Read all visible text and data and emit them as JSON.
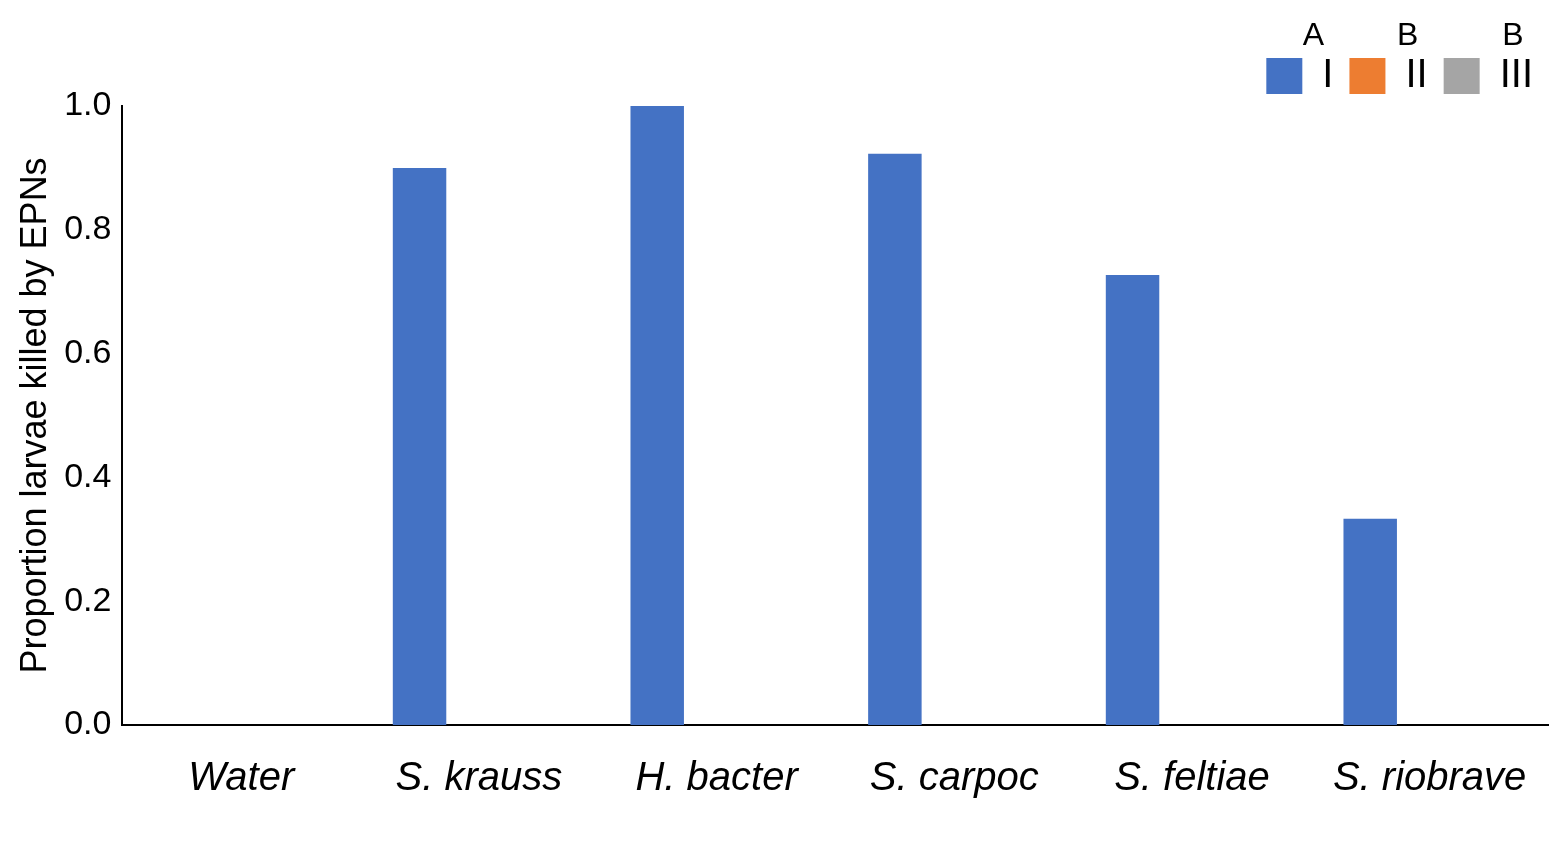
{
  "chart_data": {
    "type": "bar",
    "ylabel": "Proportion larvae killed by EPNs",
    "categories": [
      "Water",
      "S. krauss",
      "H. bacter",
      "S. carpoc",
      "S. feltiae",
      "S. riobrave"
    ],
    "series": [
      {
        "name": "I",
        "color": "#4472c4",
        "values": [
          0,
          0.9,
          1.0,
          0.923,
          0.727,
          0.333
        ]
      },
      {
        "name": "II",
        "color": "#ed7d31",
        "values": [
          0,
          0,
          0,
          0,
          0,
          0
        ]
      },
      {
        "name": "III",
        "color": "#a5a5a5",
        "values": [
          0,
          0,
          0,
          0,
          0,
          0
        ]
      }
    ],
    "ylim": [
      0,
      1
    ],
    "yticks": [
      {
        "value": 0,
        "label": "0.0"
      },
      {
        "value": 0.2,
        "label": "0.2"
      },
      {
        "value": 0.4,
        "label": "0.4"
      },
      {
        "value": 0.6,
        "label": "0.6"
      },
      {
        "value": 0.8,
        "label": "0.8"
      },
      {
        "value": 1,
        "label": "1.0"
      }
    ],
    "annotations": [
      "A",
      "B",
      "B"
    ],
    "grid": false,
    "legend": "top right"
  }
}
